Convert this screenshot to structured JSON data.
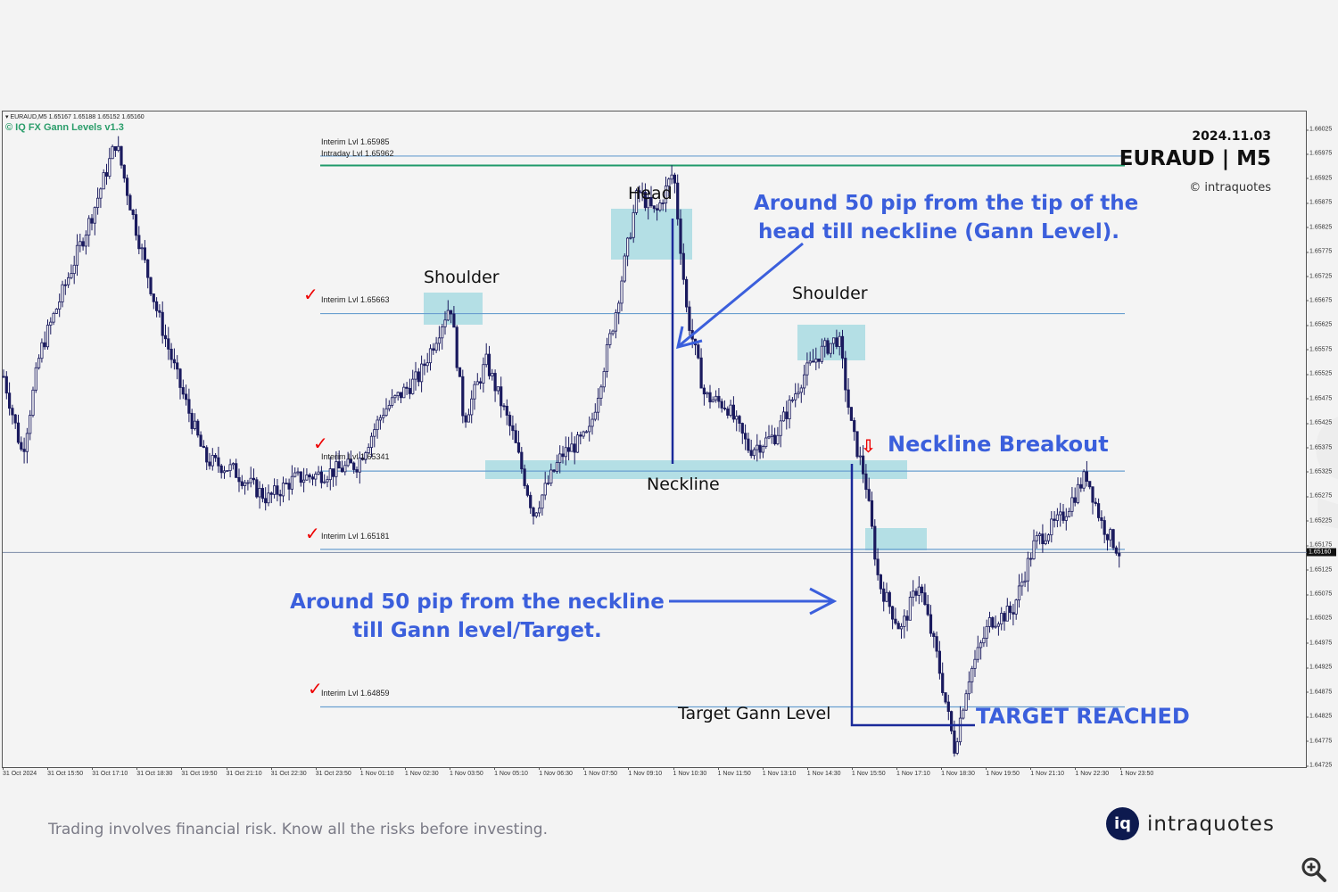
{
  "chart_data": {
    "type": "candlestick",
    "title": "EURAUD | M5",
    "date": "2024.11.03",
    "symbol": "EURAUD",
    "timeframe": "M5",
    "ohlc_header": {
      "open": 1.65167,
      "high": 1.65188,
      "low": 1.65152,
      "close": 1.6516
    },
    "indicator": "© IQ FX Gann Levels v1.3",
    "ylim": [
      1.64725,
      1.66025
    ],
    "y_ticks": [
      "1.66025",
      "1.65975",
      "1.65925",
      "1.65875",
      "1.65825",
      "1.65775",
      "1.65725",
      "1.65675",
      "1.65625",
      "1.65575",
      "1.65525",
      "1.65475",
      "1.65425",
      "1.65375",
      "1.65325",
      "1.65275",
      "1.65225",
      "1.65175",
      "1.65125",
      "1.65075",
      "1.65025",
      "1.64975",
      "1.64925",
      "1.64875",
      "1.64825",
      "1.64775",
      "1.64725"
    ],
    "x_ticks": [
      "31 Oct 2024",
      "31 Oct 15:50",
      "31 Oct 17:10",
      "31 Oct 18:30",
      "31 Oct 19:50",
      "31 Oct 21:10",
      "31 Oct 22:30",
      "31 Oct 23:50",
      "1 Nov 01:10",
      "1 Nov 02:30",
      "1 Nov 03:50",
      "1 Nov 05:10",
      "1 Nov 06:30",
      "1 Nov 07:50",
      "1 Nov 09:10",
      "1 Nov 10:30",
      "1 Nov 11:50",
      "1 Nov 13:10",
      "1 Nov 14:30",
      "1 Nov 15:50",
      "1 Nov 17:10",
      "1 Nov 18:30",
      "1 Nov 19:50",
      "1 Nov 21:10",
      "1 Nov 22:30",
      "1 Nov 23:50"
    ],
    "current_price": "1.65160",
    "levels": [
      {
        "name": "Interim Lvl",
        "value": 1.65985,
        "label": "Interim Lvl 1.65985",
        "color": "#6a9fd0",
        "checked": false
      },
      {
        "name": "Intraday Lvl",
        "value": 1.65962,
        "label": "Intraday Lvl 1.65962",
        "color": "#1f9a6a",
        "checked": false
      },
      {
        "name": "Interim Lvl",
        "value": 1.65663,
        "label": "Interim Lvl 1.65663",
        "color": "#6a9fd0",
        "checked": true
      },
      {
        "name": "Interim Lvl",
        "value": 1.65341,
        "label": "Interim Lvl 1.65341",
        "color": "#6a9fd0",
        "checked": true
      },
      {
        "name": "Interim Lvl",
        "value": 1.65181,
        "label": "Interim Lvl 1.65181",
        "color": "#6a9fd0",
        "checked": true
      },
      {
        "name": "Interim Lvl",
        "value": 1.64859,
        "label": "Interim Lvl 1.64859",
        "color": "#6a9fd0",
        "checked": true
      }
    ],
    "price_path": [
      [
        4,
        1.6552
      ],
      [
        25,
        1.6536
      ],
      [
        45,
        1.6557
      ],
      [
        80,
        1.6574
      ],
      [
        105,
        1.6586
      ],
      [
        130,
        1.66
      ],
      [
        150,
        1.6584
      ],
      [
        175,
        1.6566
      ],
      [
        200,
        1.6551
      ],
      [
        230,
        1.6535
      ],
      [
        260,
        1.6533
      ],
      [
        300,
        1.6527
      ],
      [
        330,
        1.6531
      ],
      [
        360,
        1.6532
      ],
      [
        400,
        1.6534
      ],
      [
        430,
        1.6545
      ],
      [
        470,
        1.6552
      ],
      [
        505,
        1.6567
      ],
      [
        520,
        1.6543
      ],
      [
        545,
        1.6555
      ],
      [
        575,
        1.654
      ],
      [
        598,
        1.6524
      ],
      [
        630,
        1.6536
      ],
      [
        660,
        1.654
      ],
      [
        690,
        1.6565
      ],
      [
        715,
        1.659
      ],
      [
        735,
        1.6585
      ],
      [
        755,
        1.6594
      ],
      [
        770,
        1.6565
      ],
      [
        790,
        1.6548
      ],
      [
        815,
        1.6546
      ],
      [
        840,
        1.6537
      ],
      [
        870,
        1.654
      ],
      [
        900,
        1.6552
      ],
      [
        920,
        1.6557
      ],
      [
        940,
        1.656
      ],
      [
        955,
        1.6541
      ],
      [
        970,
        1.6531
      ],
      [
        985,
        1.651
      ],
      [
        1010,
        1.65
      ],
      [
        1030,
        1.651
      ],
      [
        1050,
        1.6495
      ],
      [
        1070,
        1.6476
      ],
      [
        1085,
        1.649
      ],
      [
        1110,
        1.6502
      ],
      [
        1135,
        1.6504
      ],
      [
        1160,
        1.6518
      ],
      [
        1190,
        1.6523
      ],
      [
        1218,
        1.6532
      ],
      [
        1235,
        1.6522
      ],
      [
        1255,
        1.6516
      ]
    ],
    "annotations": [
      {
        "text": "Shoulder",
        "type": "left_shoulder"
      },
      {
        "text": "Head",
        "type": "head"
      },
      {
        "text": "Shoulder",
        "type": "right_shoulder"
      },
      {
        "text": "Neckline",
        "type": "neckline"
      },
      {
        "text": "Neckline Breakout",
        "type": "breakout"
      },
      {
        "text": "Target Gann Level",
        "type": "target_level"
      },
      {
        "text": "TARGET REACHED",
        "type": "target_reached"
      },
      {
        "text": "Around 50 pip from the tip of the head till neckline (Gann Level).",
        "type": "note"
      },
      {
        "text": "Around 50 pip from the neckline till Gann level/Target.",
        "type": "note"
      }
    ]
  },
  "header": {
    "ohlc_line": "▾ EURAUD,M5  1.65167 1.65188 1.65152 1.65160",
    "indicator": "© IQ FX Gann Levels v1.3",
    "date": "2024.11.03",
    "symbol": "EURAUD | M5",
    "copyright": "© intraquotes"
  },
  "labels": {
    "left_shoulder": "Shoulder",
    "head": "Head",
    "right_shoulder": "Shoulder",
    "neckline": "Neckline",
    "breakout": "Neckline Breakout",
    "target_level": "Target Gann Level",
    "target_reached": "TARGET REACHED",
    "note_head_1": "Around 50 pip from the tip of the",
    "note_head_2": "head till neckline (Gann Level).",
    "note_target_1": "Around 50 pip from the neckline",
    "note_target_2": "till Gann level/Target."
  },
  "watermark": "intraquotes",
  "footer": {
    "disclaimer": "Trading involves financial risk. Know all the risks before investing.",
    "brand_logo": "iq",
    "brand_name": "intraquotes"
  },
  "icons": {
    "zoom": "zoom-in-icon",
    "check": "✓",
    "down_arrow": "⇩"
  },
  "colors": {
    "accent_blue": "#3b5fdc",
    "highlight": "#a8dbe2",
    "candle": "#1a1a5e",
    "level_line": "#6a9fd0",
    "intraday_line": "#1f9a6a",
    "check": "#e00000"
  }
}
